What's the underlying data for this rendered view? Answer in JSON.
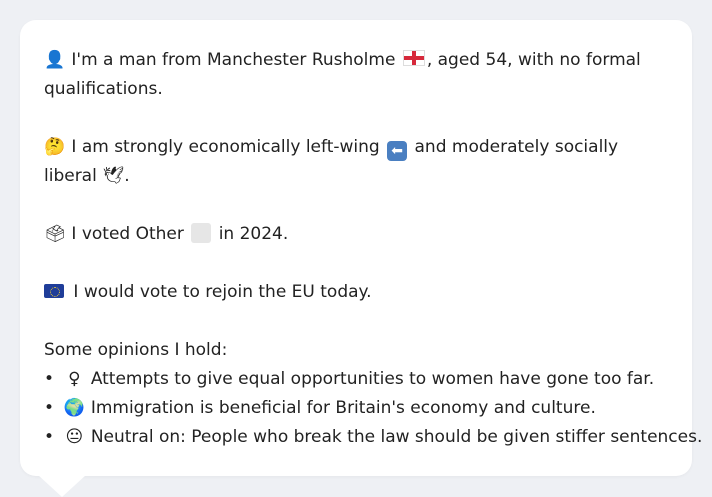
{
  "profile": {
    "line1_emoji": "👤",
    "line1_prefix": "I'm a man from Manchester Rusholme",
    "line1_flag": "england-flag",
    "line1_suffix": ", aged 54, with no formal qualifications.",
    "line2_emoji": "🤔",
    "line2_prefix": "I am strongly economically left-wing",
    "line2_arrow": "⬅",
    "line2_middle": "and moderately socially liberal",
    "line2_dove": "🕊",
    "line2_end": ".",
    "line3_emoji": "🗳",
    "line3_prefix": "I voted Other",
    "line3_suffix": "in 2024.",
    "line4_flag": "eu-flag",
    "line4_text": "I would vote to rejoin the EU today."
  },
  "opinions": {
    "heading": "Some opinions I hold:",
    "bullet": "•",
    "items": [
      {
        "icon": "♀",
        "text": "Attempts to give equal opportunities to women have gone too far."
      },
      {
        "icon": "🌍",
        "text": "Immigration is beneficial for Britain's economy and culture."
      },
      {
        "icon": "😐",
        "text": "Neutral on: People who break the law should be given stiffer sentences."
      }
    ]
  }
}
